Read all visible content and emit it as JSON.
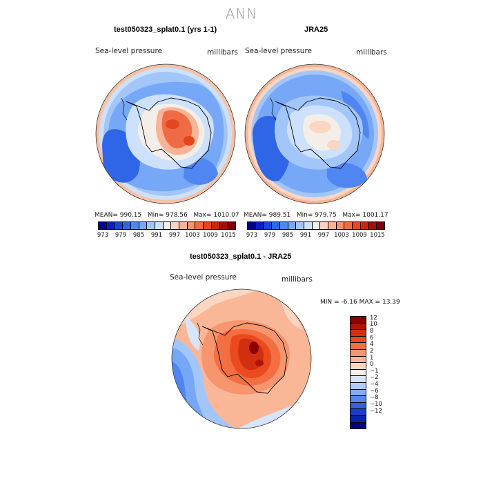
{
  "page_title": "ANN",
  "panels": [
    {
      "title": "test050323_splat0.1 (yrs 1-1)",
      "variable": "Sea-level pressure",
      "units": "millibars",
      "mean_label": "MEAN=",
      "mean": "990.15",
      "min_label": "Min=",
      "min": "978.56",
      "max_label": "Max=",
      "max": "1010.07"
    },
    {
      "title": "JRA25",
      "variable": "Sea-level pressure",
      "units": "millibars",
      "mean_label": "MEAN=",
      "mean": "989.51",
      "min_label": "Min=",
      "min": "979.75",
      "max_label": "Max=",
      "max": "1001.17"
    },
    {
      "title": "test050323_splat0.1 - JRA25",
      "variable": "Sea-level pressure",
      "units": "millibars",
      "min_label": "MIN =",
      "min": "-6.16",
      "max_label": "MAX =",
      "max": "13.39"
    }
  ],
  "colorbar_top": {
    "ticks": [
      "973",
      "979",
      "985",
      "991",
      "997",
      "1003",
      "1009",
      "1015"
    ],
    "colors": [
      "#00008f",
      "#0a20b8",
      "#1c44d8",
      "#2f66e8",
      "#4f86f2",
      "#76a8f7",
      "#a3c6fa",
      "#cde0fc",
      "#f4eee9",
      "#fbd3c0",
      "#f8b497",
      "#f4926f",
      "#ef6b46",
      "#e4461f",
      "#c42a0c",
      "#a01005",
      "#780000"
    ]
  },
  "colorbar_diff": {
    "ticks": [
      "12",
      "10",
      "8",
      "6",
      "4",
      "2",
      "1",
      "0",
      "−1",
      "−2",
      "−4",
      "−6",
      "−8",
      "−10",
      "−12"
    ],
    "colors": [
      "#8b0000",
      "#b01407",
      "#d22e10",
      "#ea4a1e",
      "#f36f42",
      "#f7956e",
      "#f9b798",
      "#fbd6c2",
      "#f6efea",
      "#d6e5fb",
      "#b0cdfa",
      "#86acf4",
      "#5a85ec",
      "#3560df",
      "#1a3ec9",
      "#0b22aa",
      "#000080"
    ]
  },
  "colors": {
    "continent_outline": "#000000",
    "map_border": "#333333"
  }
}
